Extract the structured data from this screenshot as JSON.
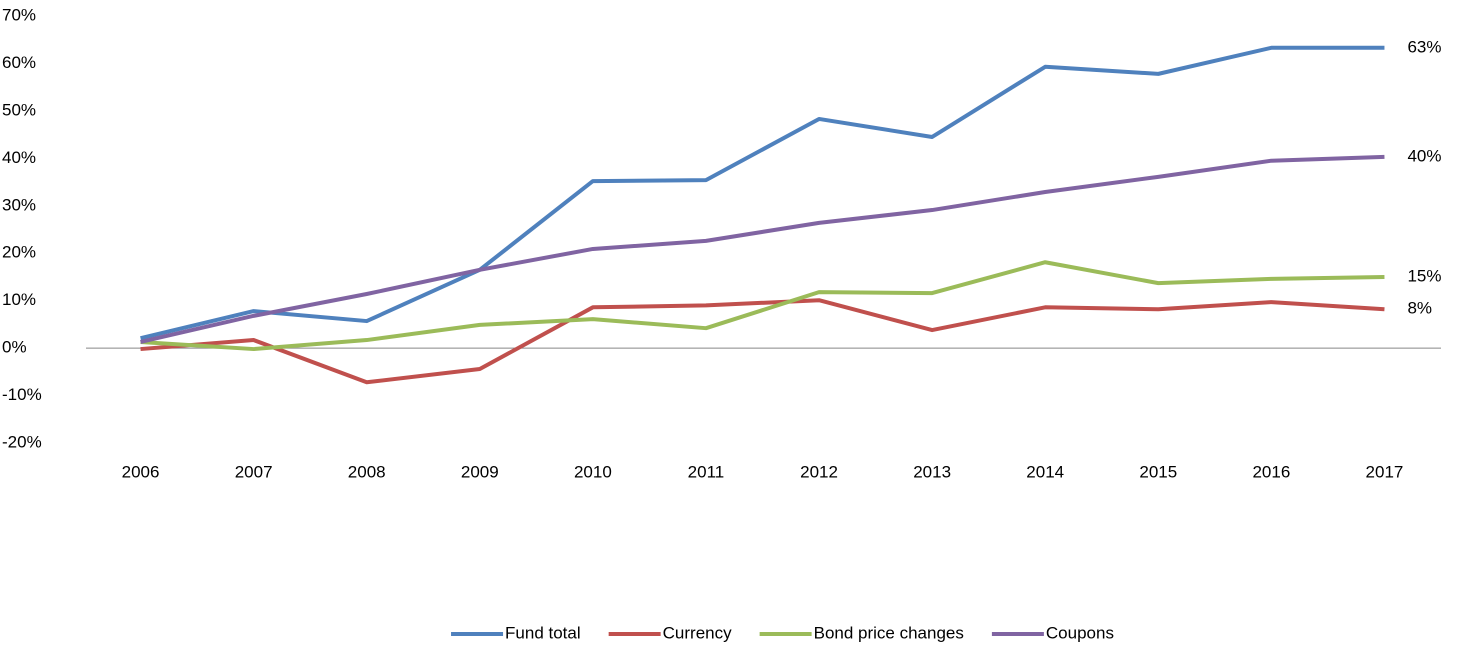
{
  "chart_data": {
    "type": "line",
    "categories": [
      "2006",
      "2007",
      "2008",
      "2009",
      "2010",
      "2011",
      "2012",
      "2013",
      "2014",
      "2015",
      "2016",
      "2017"
    ],
    "series": [
      {
        "name": "Fund total",
        "color": "#4f81bd",
        "values": [
          2.1,
          7.8,
          5.7,
          16.5,
          35.2,
          35.4,
          48.3,
          44.5,
          59.3,
          57.8,
          63.3,
          63.3
        ],
        "value_labels": [
          null,
          null,
          null,
          null,
          null,
          null,
          null,
          null,
          null,
          null,
          null,
          "63%"
        ]
      },
      {
        "name": "Currency",
        "color": "#c0504d",
        "values": [
          -0.2,
          1.7,
          -7.2,
          -4.4,
          8.6,
          9.0,
          10.1,
          3.8,
          8.6,
          8.2,
          9.7,
          8.2
        ],
        "value_labels": [
          null,
          null,
          null,
          null,
          null,
          null,
          null,
          null,
          null,
          null,
          null,
          "8%"
        ]
      },
      {
        "name": "Bond price changes",
        "color": "#9bbb59",
        "values": [
          1.3,
          -0.2,
          1.7,
          4.9,
          6.1,
          4.2,
          11.8,
          11.6,
          18.1,
          13.7,
          14.6,
          15.0
        ],
        "value_labels": [
          null,
          null,
          null,
          null,
          null,
          null,
          null,
          null,
          null,
          null,
          null,
          "15%"
        ]
      },
      {
        "name": "Coupons",
        "color": "#8064a2",
        "values": [
          1.3,
          6.8,
          11.4,
          16.5,
          20.9,
          22.6,
          26.4,
          29.1,
          32.9,
          36.1,
          39.5,
          40.3
        ],
        "value_labels": [
          null,
          null,
          null,
          null,
          null,
          null,
          null,
          null,
          null,
          null,
          null,
          "40%"
        ]
      }
    ],
    "ylim": [
      -20,
      70
    ],
    "yticks": [
      {
        "value": -20,
        "label": "-20%"
      },
      {
        "value": -10,
        "label": "-10%"
      },
      {
        "value": 0,
        "label": "0%"
      },
      {
        "value": 10,
        "label": "10%"
      },
      {
        "value": 20,
        "label": "20%"
      },
      {
        "value": 30,
        "label": "30%"
      },
      {
        "value": 40,
        "label": "40%"
      },
      {
        "value": 50,
        "label": "50%"
      },
      {
        "value": 60,
        "label": "60%"
      },
      {
        "value": 70,
        "label": "70%"
      }
    ],
    "grid": false,
    "legend": "bottom"
  }
}
